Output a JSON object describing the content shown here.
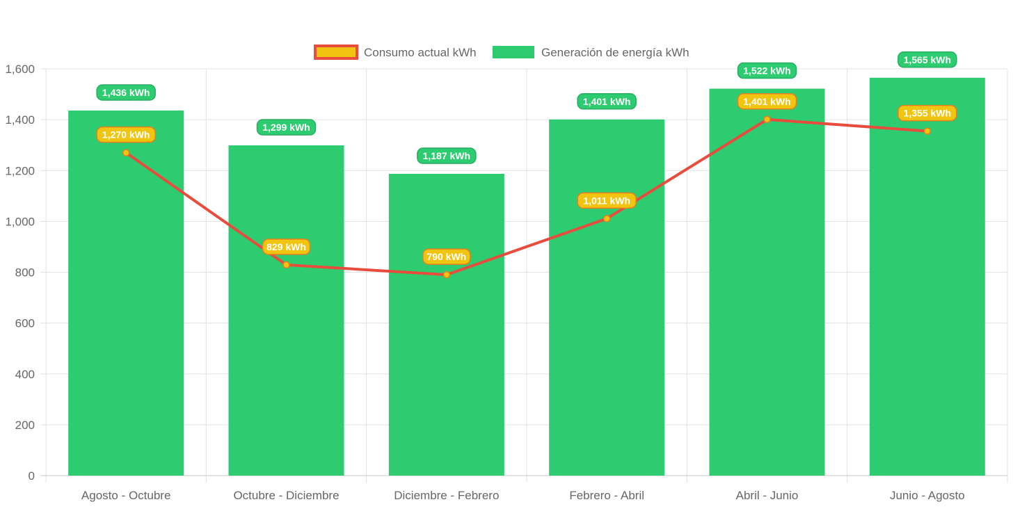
{
  "colors": {
    "bar": "#2ecc71",
    "line": "#e74c3c",
    "point_fill": "#f1c40f",
    "badge_line_fill": "#f1c40f",
    "badge_line_border": "#e67e22",
    "badge_bar_border": "#27ae60",
    "grid": "#e1e1e1",
    "tick_text": "#666666"
  },
  "chart_data": {
    "type": "bar",
    "categories": [
      "Agosto - Octubre",
      "Octubre - Diciembre",
      "Diciembre - Febrero",
      "Febrero - Abril",
      "Abril - Junio",
      "Junio - Agosto"
    ],
    "series": [
      {
        "name": "Consumo actual kWh",
        "type": "line",
        "values": [
          1270,
          829,
          790,
          1011,
          1401,
          1355
        ],
        "labels": [
          "1,270 kWh",
          "829 kWh",
          "790 kWh",
          "1,011 kWh",
          "1,401 kWh",
          "1,355 kWh"
        ]
      },
      {
        "name": "Generación de energía kWh",
        "type": "bar",
        "values": [
          1436,
          1299,
          1187,
          1401,
          1522,
          1565
        ],
        "labels": [
          "1,436 kWh",
          "1,299 kWh",
          "1,187 kWh",
          "1,401 kWh",
          "1,522 kWh",
          "1,565 kWh"
        ]
      }
    ],
    "ylim": [
      0,
      1600
    ],
    "yticks": [
      0,
      200,
      400,
      600,
      800,
      1000,
      1200,
      1400,
      1600
    ],
    "ytick_labels": [
      "0",
      "200",
      "400",
      "600",
      "800",
      "1,000",
      "1,200",
      "1,400",
      "1,600"
    ],
    "grid": true,
    "legend_position": "top-center"
  }
}
